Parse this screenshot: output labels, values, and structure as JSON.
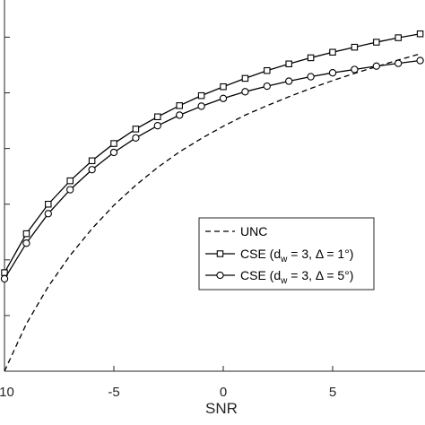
{
  "chart_data": {
    "type": "line",
    "title": "",
    "xlabel": "SNR",
    "ylabel": "",
    "xlim": [
      -10,
      9.2
    ],
    "ylim": [
      0,
      0.67
    ],
    "xticks": [
      -10,
      -5,
      0,
      5
    ],
    "xtick_labels": [
      "-10",
      "-5",
      "0",
      "5"
    ],
    "yticks": [
      0.0,
      0.1,
      0.2,
      0.3,
      0.4,
      0.5,
      0.6
    ],
    "grid": false,
    "legend_position": "center-right",
    "series": [
      {
        "name": "UNC",
        "line_style": "dashed",
        "marker": "none",
        "color": "#000000",
        "x": [
          -10,
          -9,
          -8,
          -7,
          -6,
          -5,
          -4,
          -3,
          -2,
          -1,
          0,
          1,
          2,
          3,
          4,
          5,
          6,
          7,
          8,
          9
        ],
        "y": [
          0.0,
          0.085,
          0.152,
          0.208,
          0.256,
          0.298,
          0.334,
          0.366,
          0.394,
          0.418,
          0.44,
          0.46,
          0.477,
          0.493,
          0.508,
          0.522,
          0.535,
          0.547,
          0.559,
          0.57
        ]
      },
      {
        "name": "CSE (d_w = 3, Δ = 1°)",
        "label_parts": {
          "prefix": "CSE (d",
          "sub": "w",
          "suffix": " = 3, Δ = 1°)"
        },
        "line_style": "solid",
        "marker": "square",
        "color": "#000000",
        "x": [
          -10,
          -9,
          -8,
          -7,
          -6,
          -5,
          -4,
          -3,
          -2,
          -1,
          0,
          1,
          2,
          3,
          4,
          5,
          6,
          7,
          8,
          9
        ],
        "y": [
          0.177,
          0.247,
          0.3,
          0.342,
          0.378,
          0.409,
          0.435,
          0.457,
          0.477,
          0.495,
          0.511,
          0.526,
          0.54,
          0.552,
          0.563,
          0.573,
          0.582,
          0.591,
          0.599,
          0.606
        ]
      },
      {
        "name": "CSE (d_w = 3, Δ = 5°)",
        "label_parts": {
          "prefix": "CSE (d",
          "sub": "w",
          "suffix": " = 3, Δ = 5°)"
        },
        "line_style": "solid",
        "marker": "circle",
        "color": "#000000",
        "x": [
          -10,
          -9,
          -8,
          -7,
          -6,
          -5,
          -4,
          -3,
          -2,
          -1,
          0,
          1,
          2,
          3,
          4,
          5,
          6,
          7,
          8,
          9
        ],
        "y": [
          0.166,
          0.23,
          0.283,
          0.326,
          0.362,
          0.393,
          0.419,
          0.441,
          0.46,
          0.476,
          0.49,
          0.502,
          0.512,
          0.521,
          0.529,
          0.536,
          0.542,
          0.548,
          0.553,
          0.558
        ]
      }
    ]
  }
}
